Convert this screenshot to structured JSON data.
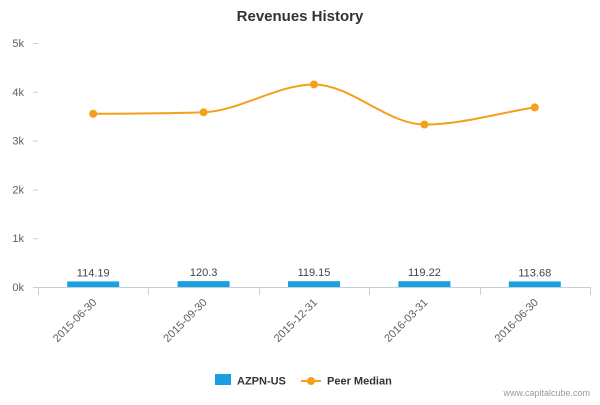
{
  "chart_data": {
    "type": "bar",
    "title": "Revenues History",
    "xlabel": "",
    "ylabel": "",
    "ylim": [
      0,
      5000
    ],
    "yticks": [
      {
        "value": 0,
        "label": "0k"
      },
      {
        "value": 1000,
        "label": "1k"
      },
      {
        "value": 2000,
        "label": "2k"
      },
      {
        "value": 3000,
        "label": "3k"
      },
      {
        "value": 4000,
        "label": "4k"
      },
      {
        "value": 5000,
        "label": "5k"
      }
    ],
    "grid": false,
    "categories": [
      "2015-06-30",
      "2015-09-30",
      "2015-12-31",
      "2016-03-31",
      "2016-06-30"
    ],
    "series": [
      {
        "name": "AZPN-US",
        "type": "bar",
        "color": "#1a9fe0",
        "values": [
          114.19,
          120.3,
          119.15,
          119.22,
          113.68
        ],
        "labels": [
          "114.19",
          "120.3",
          "119.15",
          "119.22",
          "113.68"
        ]
      },
      {
        "name": "Peer Median",
        "type": "line",
        "smooth": true,
        "color": "#f5a01a",
        "values": [
          3550,
          3580,
          4150,
          3330,
          3680
        ]
      }
    ],
    "legend_position": "bottom-center"
  },
  "watermark": "www.capitalcube.com"
}
